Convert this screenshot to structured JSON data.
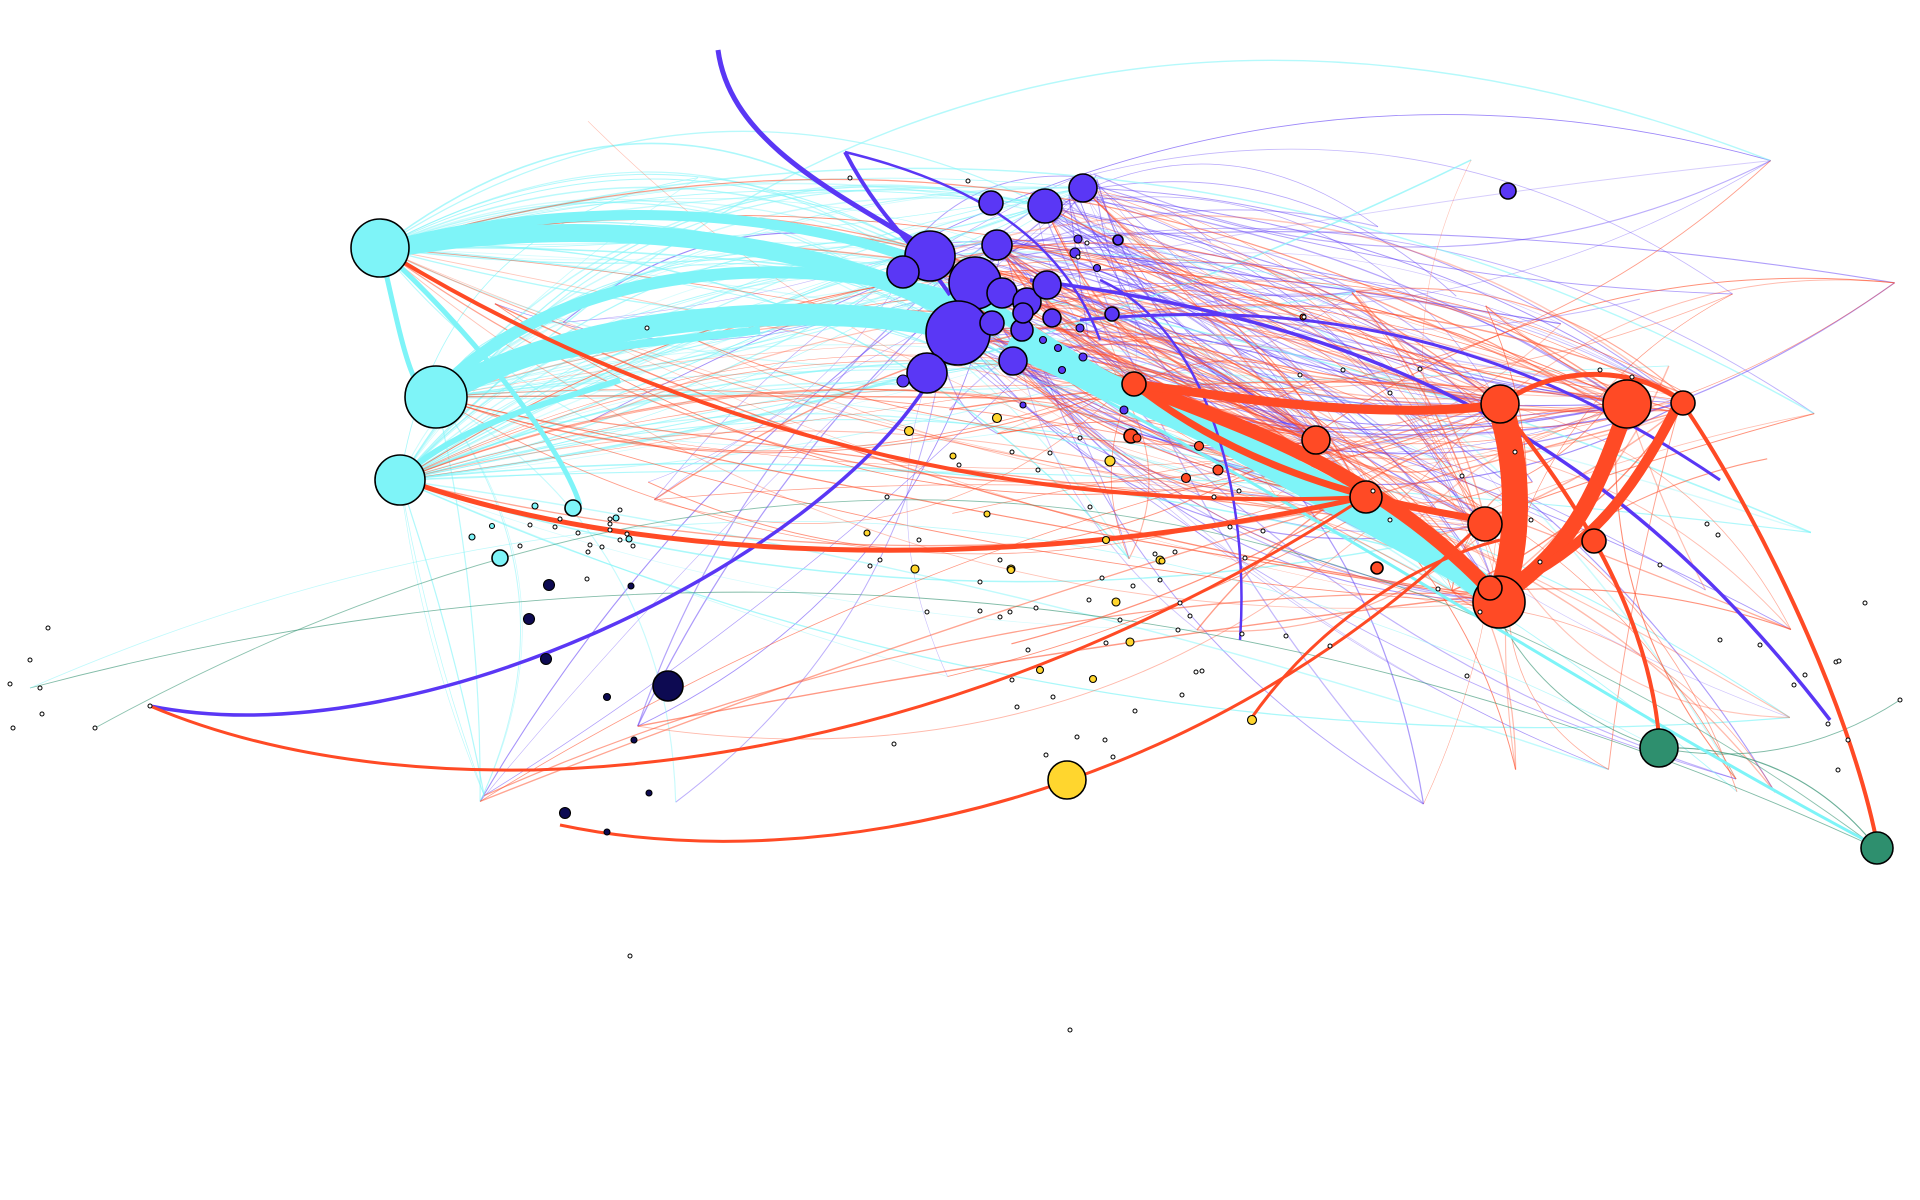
{
  "graph": {
    "type": "network",
    "title": "",
    "colors": {
      "violet": "#5a37f5",
      "cyan": "#7ef4f8",
      "red": "#ff4a25",
      "yellow": "#ffd62e",
      "navy": "#0d0a52",
      "green": "#2e8f6e",
      "background": "#ffffff",
      "outline": "#000000"
    },
    "groups": [
      {
        "id": "violet",
        "color_key": "violet",
        "node_count_large": 14
      },
      {
        "id": "cyan",
        "color_key": "cyan",
        "node_count_large": 3
      },
      {
        "id": "red",
        "color_key": "red",
        "node_count_large": 9
      },
      {
        "id": "yellow",
        "color_key": "yellow",
        "node_count_large": 1
      },
      {
        "id": "navy",
        "color_key": "navy",
        "node_count_large": 1
      },
      {
        "id": "green",
        "color_key": "green",
        "node_count_large": 2
      }
    ]
  }
}
